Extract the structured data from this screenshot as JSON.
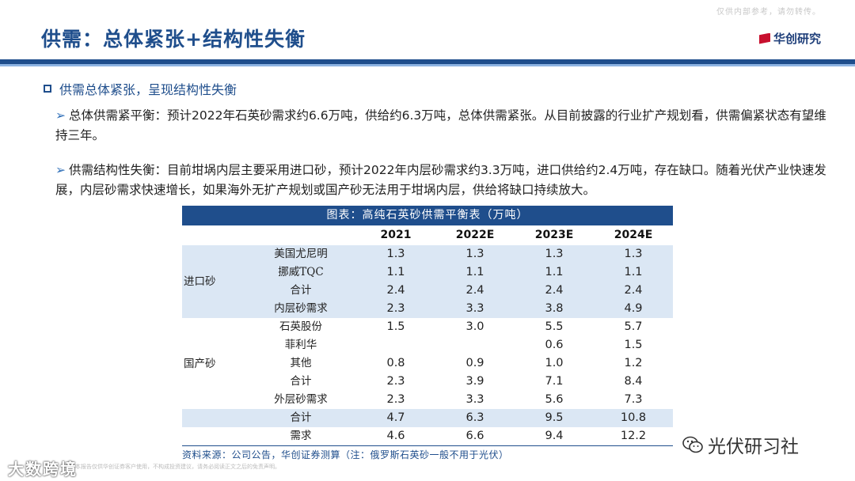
{
  "watermark_top": "仅供内部参考，请勿转传。",
  "title": "供需：总体紧张+结构性失衡",
  "logo_text": "华创研究",
  "section_heading": "供需总体紧张，呈现结构性失衡",
  "paragraphs": [
    {
      "arrow": "➢",
      "text": "总体供需紧平衡：预计2022年石英砂需求约6.6万吨，供给约6.3万吨，总体供需紧张。从目前披露的行业扩产规划看，供需偏紧状态有望维持三年。"
    },
    {
      "arrow": "➢",
      "text": "供需结构性失衡：目前坩埚内层主要采用进口砂，预计2022年内层砂需求约3.3万吨，进口供给约2.4万吨，存在缺口。随着光伏产业快速发展，内层砂需求快速增长，如果海外无扩产规划或国产砂无法用于坩埚内层，供给将缺口持续放大。"
    }
  ],
  "table": {
    "caption": "图表：高纯石英砂供需平衡表（万吨）",
    "years": [
      "2021",
      "2022E",
      "2023E",
      "2024E"
    ],
    "groups": [
      {
        "label": "进口砂",
        "rows": [
          {
            "name": "美国尤尼明",
            "values": [
              "1.3",
              "1.3",
              "1.3",
              "1.3"
            ]
          },
          {
            "name": "挪威TQC",
            "values": [
              "1.1",
              "1.1",
              "1.1",
              "1.1"
            ]
          },
          {
            "name": "合计",
            "values": [
              "2.4",
              "2.4",
              "2.4",
              "2.4"
            ]
          },
          {
            "name": "内层砂需求",
            "values": [
              "2.3",
              "3.3",
              "3.8",
              "4.9"
            ]
          }
        ]
      },
      {
        "label": "国产砂",
        "rows": [
          {
            "name": "石英股份",
            "values": [
              "1.5",
              "3.0",
              "5.5",
              "5.7"
            ]
          },
          {
            "name": "菲利华",
            "values": [
              "",
              "",
              "0.6",
              "1.5"
            ]
          },
          {
            "name": "其他",
            "values": [
              "0.8",
              "0.9",
              "1.0",
              "1.2"
            ]
          },
          {
            "name": "合计",
            "values": [
              "2.3",
              "3.9",
              "7.1",
              "8.4"
            ]
          },
          {
            "name": "外层砂需求",
            "values": [
              "2.3",
              "3.3",
              "5.6",
              "7.3"
            ]
          }
        ]
      }
    ],
    "totals": [
      {
        "name": "合计",
        "values": [
          "4.7",
          "6.3",
          "9.5",
          "10.8"
        ]
      },
      {
        "name": "需求",
        "values": [
          "4.6",
          "6.6",
          "9.4",
          "12.2"
        ]
      }
    ],
    "source": "资料来源：公司公告，华创证券测算（注：俄罗斯石英砂一般不用于光伏）"
  },
  "footer_small": "本报告仅供华创证券客户使用，不构成投资建议，请务必阅读正文之后的免责声明。",
  "watermark_left": "大数跨境",
  "watermark_right": "光伏研习社",
  "colors": {
    "brand_blue": "#1f4e8c",
    "band": "#dbe7f4",
    "logo_red": "#c8102e"
  }
}
